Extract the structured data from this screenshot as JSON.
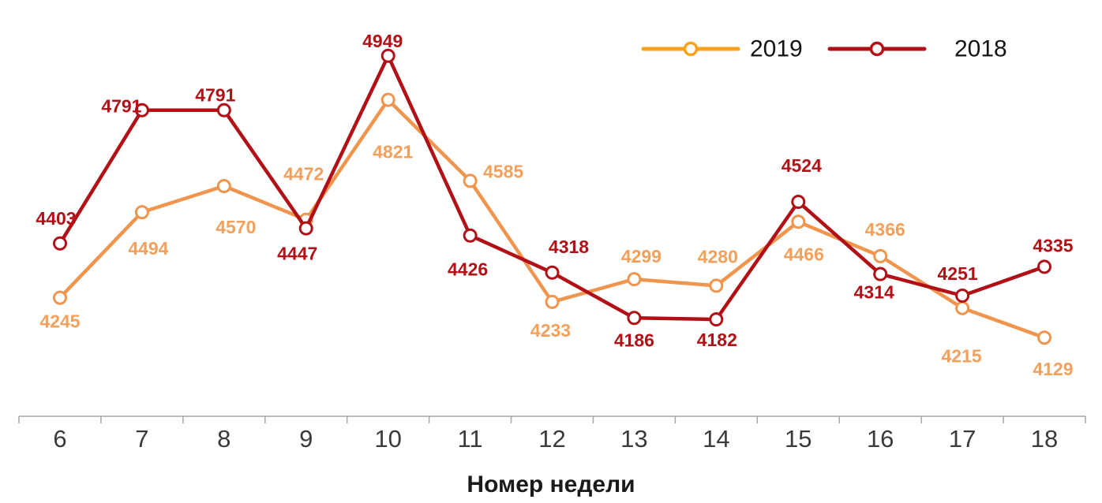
{
  "chart_data": {
    "type": "line",
    "categories": [
      "6",
      "7",
      "8",
      "9",
      "10",
      "11",
      "12",
      "13",
      "14",
      "15",
      "16",
      "17",
      "18"
    ],
    "xlabel": "Номер недели",
    "ylim": [
      3900,
      4960
    ],
    "grid": false,
    "legend_position": "top-right",
    "series": [
      {
        "name": "2019",
        "color": "#F0954E",
        "legend_color": "#F9A21C",
        "label_color": "#F2A05C",
        "values": [
          4245,
          4494,
          4570,
          4472,
          4821,
          4585,
          4233,
          4299,
          4280,
          4466,
          4366,
          4215,
          4129
        ],
        "label_offsets": [
          [
            0,
            30
          ],
          [
            8,
            46
          ],
          [
            15,
            52
          ],
          [
            -3,
            -58
          ],
          [
            6,
            66
          ],
          [
            42,
            -12
          ],
          [
            -2,
            36
          ],
          [
            9,
            -29
          ],
          [
            2,
            -37
          ],
          [
            7,
            41
          ],
          [
            6,
            -34
          ],
          [
            -1,
            61
          ],
          [
            11,
            40
          ]
        ]
      },
      {
        "name": "2018",
        "color": "#B11116",
        "legend_color": "#B11116",
        "label_color": "#B11116",
        "values": [
          4403,
          4791,
          4791,
          4447,
          4949,
          4426,
          4318,
          4186,
          4182,
          4524,
          4314,
          4251,
          4335
        ],
        "label_offsets": [
          [
            -5,
            -32
          ],
          [
            -26,
            -5
          ],
          [
            -11,
            -19
          ],
          [
            -11,
            32
          ],
          [
            -7,
            -19
          ],
          [
            -3,
            43
          ],
          [
            21,
            -33
          ],
          [
            0,
            28
          ],
          [
            1,
            26
          ],
          [
            4,
            -46
          ],
          [
            -8,
            23
          ],
          [
            -6,
            -28
          ],
          [
            11,
            -27
          ]
        ]
      }
    ]
  },
  "axis": {
    "line_color": "#A6A6A6",
    "tick_color": "#A6A6A6",
    "category_label_color": "#3A3A3A"
  },
  "legend": {
    "text_color": "#141414",
    "items": [
      {
        "label": "2019"
      },
      {
        "label": "2018"
      }
    ]
  }
}
